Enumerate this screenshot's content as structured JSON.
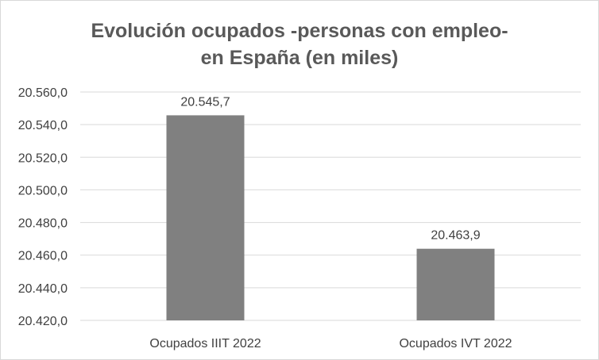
{
  "chart_data": {
    "type": "bar",
    "title": "Evolución ocupados -personas con empleo- en España (en miles)",
    "title_lines": [
      "Evolución ocupados -personas con empleo-",
      "en España (en miles)"
    ],
    "categories": [
      "Ocupados IIIT 2022",
      "Ocupados IVT 2022"
    ],
    "values": [
      20545.7,
      20463.9
    ],
    "data_labels": [
      "20.545,7",
      "20.463,9"
    ],
    "ylim": [
      20420,
      20560
    ],
    "yticks": [
      20420,
      20440,
      20460,
      20480,
      20500,
      20520,
      20540,
      20560
    ],
    "ytick_labels": [
      "20.420,0",
      "20.440,0",
      "20.460,0",
      "20.480,0",
      "20.500,0",
      "20.520,0",
      "20.540,0",
      "20.560,0"
    ],
    "xlabel": "",
    "ylabel": "",
    "grid": true,
    "legend": "none",
    "bar_color": "#808080",
    "grid_color": "#d9d9d9"
  }
}
